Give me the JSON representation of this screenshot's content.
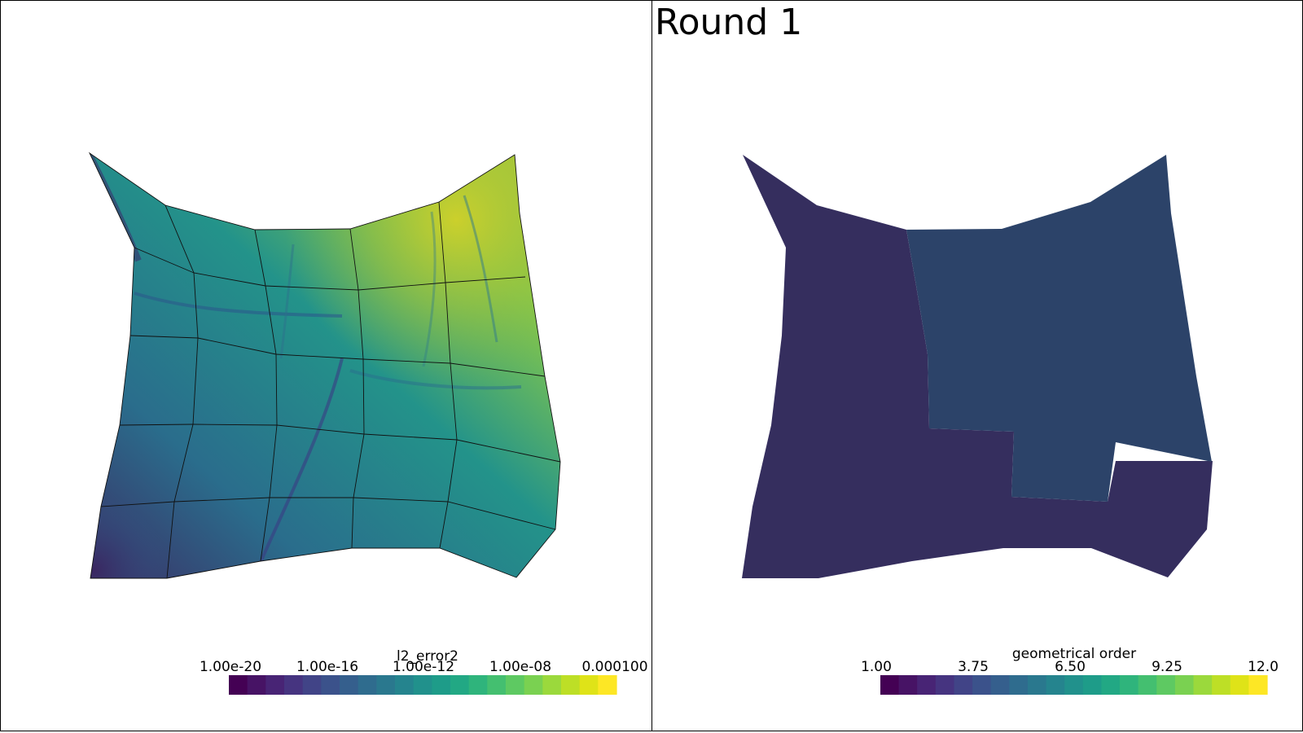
{
  "title": "Round 1",
  "left_panel": {
    "colorbar": {
      "label": "l2_error2",
      "ticks": [
        "1.00e-20",
        "1.00e-16",
        "1.00e-12",
        "1.00e-08",
        "0.000100"
      ]
    }
  },
  "right_panel": {
    "colorbar": {
      "label": "geometrical order",
      "ticks": [
        "1.00",
        "3.75",
        "6.50",
        "9.25",
        "12.0"
      ]
    },
    "region_values": {
      "lower_order_region": 2,
      "higher_order_region": 3
    }
  },
  "colors": {
    "viridis": [
      "#440154",
      "#471365",
      "#482475",
      "#463480",
      "#414487",
      "#3b528b",
      "#355f8d",
      "#2f6c8e",
      "#2a788e",
      "#25848e",
      "#21918c",
      "#1e9c89",
      "#22a884",
      "#2fb47c",
      "#44bf70",
      "#5ec962",
      "#7ad151",
      "#9bd93c",
      "#bddf26",
      "#dfe318",
      "#fde725"
    ],
    "region_low": "#352e5e",
    "region_high": "#2c4369"
  }
}
